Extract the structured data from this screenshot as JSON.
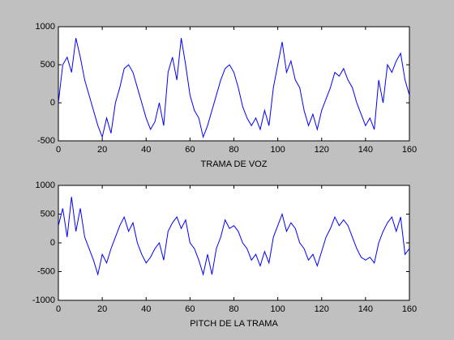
{
  "chart_data": [
    {
      "type": "line",
      "xlabel": "TRAMA DE VOZ",
      "xlim": [
        0,
        160
      ],
      "ylim": [
        -500,
        1000
      ],
      "xticks": [
        0,
        20,
        40,
        60,
        80,
        100,
        120,
        140,
        160
      ],
      "yticks": [
        -500,
        0,
        500,
        1000
      ],
      "x": [
        0,
        2,
        4,
        6,
        8,
        10,
        12,
        14,
        16,
        18,
        20,
        22,
        24,
        26,
        28,
        30,
        32,
        34,
        36,
        38,
        40,
        42,
        44,
        46,
        48,
        50,
        52,
        54,
        56,
        58,
        60,
        62,
        64,
        66,
        68,
        70,
        72,
        74,
        76,
        78,
        80,
        82,
        84,
        86,
        88,
        90,
        92,
        94,
        96,
        98,
        100,
        102,
        104,
        106,
        108,
        110,
        112,
        114,
        116,
        118,
        120,
        122,
        124,
        126,
        128,
        130,
        132,
        134,
        136,
        138,
        140,
        142,
        144,
        146,
        148,
        150,
        152,
        154,
        156,
        158,
        160
      ],
      "series": [
        {
          "color": "#0000ff",
          "values": [
            0,
            500,
            600,
            400,
            850,
            600,
            300,
            100,
            -100,
            -300,
            -450,
            -200,
            -400,
            0,
            200,
            450,
            500,
            400,
            200,
            0,
            -200,
            -350,
            -250,
            0,
            -300,
            400,
            600,
            300,
            850,
            500,
            100,
            -100,
            -200,
            -450,
            -300,
            -100,
            100,
            300,
            450,
            500,
            400,
            200,
            -50,
            -200,
            -300,
            -200,
            -350,
            -100,
            -300,
            200,
            500,
            800,
            400,
            550,
            300,
            200,
            -100,
            -300,
            -150,
            -350,
            -100,
            50,
            200,
            400,
            350,
            450,
            300,
            200,
            0,
            -150,
            -300,
            -200,
            -350,
            300,
            0,
            500,
            400,
            550,
            650,
            300,
            100
          ]
        }
      ]
    },
    {
      "type": "line",
      "xlabel": "PITCH DE LA TRAMA",
      "xlim": [
        0,
        160
      ],
      "ylim": [
        -1000,
        1000
      ],
      "xticks": [
        0,
        20,
        40,
        60,
        80,
        100,
        120,
        140,
        160
      ],
      "yticks": [
        -1000,
        -500,
        0,
        500,
        1000
      ],
      "x": [
        0,
        2,
        4,
        6,
        8,
        10,
        12,
        14,
        16,
        18,
        20,
        22,
        24,
        26,
        28,
        30,
        32,
        34,
        36,
        38,
        40,
        42,
        44,
        46,
        48,
        50,
        52,
        54,
        56,
        58,
        60,
        62,
        64,
        66,
        68,
        70,
        72,
        74,
        76,
        78,
        80,
        82,
        84,
        86,
        88,
        90,
        92,
        94,
        96,
        98,
        100,
        102,
        104,
        106,
        108,
        110,
        112,
        114,
        116,
        118,
        120,
        122,
        124,
        126,
        128,
        130,
        132,
        134,
        136,
        138,
        140,
        142,
        144,
        146,
        148,
        150,
        152,
        154,
        156,
        158,
        160
      ],
      "series": [
        {
          "color": "#0000ff",
          "values": [
            300,
            600,
            100,
            800,
            200,
            600,
            100,
            -100,
            -300,
            -550,
            -200,
            -350,
            -100,
            100,
            300,
            450,
            200,
            350,
            0,
            -200,
            -350,
            -250,
            -100,
            0,
            -300,
            200,
            350,
            450,
            250,
            400,
            0,
            -100,
            -300,
            -550,
            -200,
            -550,
            -100,
            100,
            400,
            250,
            300,
            200,
            0,
            -100,
            -300,
            -200,
            -400,
            -150,
            -350,
            100,
            300,
            500,
            200,
            350,
            250,
            0,
            -100,
            -300,
            -200,
            -400,
            -150,
            100,
            250,
            450,
            300,
            400,
            300,
            100,
            -100,
            -250,
            -300,
            -250,
            -350,
            0,
            200,
            350,
            450,
            200,
            450,
            -200,
            -100
          ]
        }
      ]
    }
  ]
}
